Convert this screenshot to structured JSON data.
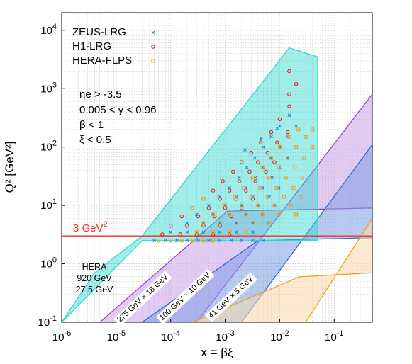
{
  "chart_data": {
    "type": "scatter",
    "xlabel": "x = βξ",
    "ylabel": "Q² [GeV²]",
    "x_scale": "log",
    "y_scale": "log",
    "xlim": [
      1e-06,
      0.5
    ],
    "ylim": [
      0.1,
      20000
    ],
    "x_ticks": [
      {
        "value": 1e-06,
        "base": "10",
        "exp": "-6"
      },
      {
        "value": 1e-05,
        "base": "10",
        "exp": "-5"
      },
      {
        "value": 0.0001,
        "base": "10",
        "exp": "-4"
      },
      {
        "value": 0.001,
        "base": "10",
        "exp": "-3"
      },
      {
        "value": 0.01,
        "base": "10",
        "exp": "-2"
      },
      {
        "value": 0.1,
        "base": "10",
        "exp": "-1"
      }
    ],
    "y_ticks": [
      {
        "value": 0.1,
        "base": "10",
        "exp": "-1"
      },
      {
        "value": 1,
        "base": "10",
        "exp": "0"
      },
      {
        "value": 10,
        "base": "10",
        "exp": "1"
      },
      {
        "value": 100,
        "base": "10",
        "exp": "2"
      },
      {
        "value": 1000,
        "base": "10",
        "exp": "3"
      },
      {
        "value": 10000,
        "base": "10",
        "exp": "4"
      }
    ],
    "grid": true,
    "legend_position": "top-left",
    "legend": [
      {
        "label": "ZEUS-LRG",
        "marker": "x",
        "color": "#2c7fd6"
      },
      {
        "label": "H1-LRG",
        "marker": "circle",
        "color": "#e02020"
      },
      {
        "label": "HERA-FLPS",
        "marker": "square",
        "color": "#f0a020"
      }
    ],
    "cuts": [
      "ηe > -3.5",
      "0.005 < y < 0.96",
      "β < 1",
      "ξ < 0.5"
    ],
    "reference_line": {
      "y": 3,
      "label_base": "3 GeV",
      "label_exp": "2",
      "color": "#e8322a"
    },
    "hera_label": [
      "HERA",
      "920 GeV",
      "27.5 GeV"
    ],
    "bands": [
      {
        "name": "275 GeV × 18 GeV",
        "color": "#9b45c9",
        "fill": "#c9a0ea",
        "lower_start": [
          5e-06,
          0.1
        ],
        "lower_end": [
          0.0011,
          8
        ],
        "lower_tail": [
          0.5,
          9
        ],
        "upper_start": [
          0.0003,
          0.1
        ],
        "upper_end": [
          0.5,
          800
        ]
      },
      {
        "name": "100 GeV × 10 GeV",
        "color": "#2b6fd0",
        "fill": "#7f9fe6",
        "lower_start": [
          3e-05,
          0.1
        ],
        "lower_end": [
          0.004,
          2.5
        ],
        "lower_tail": [
          0.5,
          2.8
        ],
        "upper_start": [
          0.002,
          0.1
        ],
        "upper_end": [
          0.5,
          110
        ]
      },
      {
        "name": "41 GeV × 5 GeV",
        "color": "#f0a020",
        "fill": "#f8d8a8",
        "lower_start": [
          0.00025,
          0.1
        ],
        "lower_end": [
          0.023,
          0.6
        ],
        "lower_tail": [
          0.5,
          0.7
        ],
        "upper_start": [
          0.03,
          0.1
        ],
        "upper_end": [
          0.5,
          6
        ]
      }
    ],
    "band_labels": [
      {
        "text": "275 GeV × 18 GeV",
        "x": 3e-05,
        "y": 0.26,
        "angle": -43
      },
      {
        "text": "100 GeV × 10 GeV",
        "x": 0.00018,
        "y": 0.28,
        "angle": -43
      },
      {
        "text": "41 GeV × 5 GeV",
        "x": 0.00125,
        "y": 0.27,
        "angle": -43
      }
    ],
    "hera_region": {
      "polygon": [
        [
          1e-06,
          0.1
        ],
        [
          3e-05,
          2.5
        ],
        [
          0.05,
          2.5
        ],
        [
          0.05,
          3500
        ],
        [
          0.015,
          5000
        ],
        [
          3e-05,
          3
        ],
        [
          4e-06,
          0.7
        ],
        [
          1e-06,
          0.1
        ]
      ],
      "color": "#2ed8d0"
    },
    "series": [
      {
        "name": "ZEUS-LRG",
        "marker": "x",
        "points": [
          [
            5e-05,
            2.5
          ],
          [
            8e-05,
            2.5
          ],
          [
            0.00013,
            2.5
          ],
          [
            0.0002,
            2.5
          ],
          [
            0.00032,
            2.5
          ],
          [
            0.0005,
            2.5
          ],
          [
            0.0008,
            2.5
          ],
          [
            0.0013,
            2.5
          ],
          [
            0.002,
            2.5
          ],
          [
            0.0032,
            2.5
          ],
          [
            0.005,
            2.5
          ],
          [
            0.0001,
            3.5
          ],
          [
            0.0002,
            3.5
          ],
          [
            0.0004,
            3.5
          ],
          [
            0.0008,
            3.5
          ],
          [
            0.0016,
            3.5
          ],
          [
            0.0032,
            3.5
          ],
          [
            0.0002,
            5
          ],
          [
            0.0004,
            5
          ],
          [
            0.0008,
            5
          ],
          [
            0.0016,
            5
          ],
          [
            0.0032,
            5
          ],
          [
            0.006,
            5
          ],
          [
            0.0003,
            7
          ],
          [
            0.0006,
            7
          ],
          [
            0.0012,
            7
          ],
          [
            0.0024,
            7
          ],
          [
            0.0048,
            7
          ],
          [
            0.0005,
            10
          ],
          [
            0.001,
            10
          ],
          [
            0.002,
            10
          ],
          [
            0.004,
            10
          ],
          [
            0.008,
            10
          ],
          [
            0.0008,
            14
          ],
          [
            0.0016,
            14
          ],
          [
            0.0032,
            14
          ],
          [
            0.0064,
            14
          ],
          [
            0.0012,
            20
          ],
          [
            0.0024,
            20
          ],
          [
            0.0048,
            20
          ],
          [
            0.0096,
            20
          ],
          [
            0.0018,
            30
          ],
          [
            0.0036,
            30
          ],
          [
            0.0072,
            30
          ],
          [
            0.0025,
            45
          ],
          [
            0.005,
            45
          ],
          [
            0.01,
            45
          ],
          [
            0.0035,
            65
          ],
          [
            0.007,
            65
          ],
          [
            0.014,
            65
          ],
          [
            0.005,
            100
          ],
          [
            0.01,
            100
          ],
          [
            0.007,
            150
          ],
          [
            0.014,
            150
          ],
          [
            0.01,
            230
          ],
          [
            0.02,
            230
          ],
          [
            0.015,
            350
          ],
          [
            0.0023,
            90
          ],
          [
            0.0046,
            140
          ],
          [
            0.009,
            210
          ]
        ]
      },
      {
        "name": "H1-LRG",
        "marker": "circle",
        "points": [
          [
            7e-05,
            3.2
          ],
          [
            0.00015,
            3.2
          ],
          [
            0.0003,
            3.2
          ],
          [
            0.0006,
            3.2
          ],
          [
            0.0012,
            3.2
          ],
          [
            0.0001,
            4.5
          ],
          [
            0.0002,
            4.5
          ],
          [
            0.0004,
            4.5
          ],
          [
            0.0008,
            4.5
          ],
          [
            0.00016,
            6.5
          ],
          [
            0.00032,
            6.5
          ],
          [
            0.00064,
            6.5
          ],
          [
            0.0013,
            6.5
          ],
          [
            0.00025,
            9
          ],
          [
            0.0005,
            9
          ],
          [
            0.001,
            9
          ],
          [
            0.002,
            9
          ],
          [
            0.0004,
            13
          ],
          [
            0.0008,
            13
          ],
          [
            0.0016,
            13
          ],
          [
            0.0032,
            13
          ],
          [
            0.0006,
            18
          ],
          [
            0.0012,
            18
          ],
          [
            0.0024,
            18
          ],
          [
            0.0009,
            26
          ],
          [
            0.0018,
            26
          ],
          [
            0.0036,
            26
          ],
          [
            0.0014,
            38
          ],
          [
            0.0028,
            38
          ],
          [
            0.0056,
            38
          ],
          [
            0.002,
            55
          ],
          [
            0.004,
            55
          ],
          [
            0.008,
            55
          ],
          [
            0.003,
            80
          ],
          [
            0.006,
            80
          ],
          [
            0.0045,
            120
          ],
          [
            0.009,
            120
          ],
          [
            0.007,
            180
          ],
          [
            0.014,
            180
          ],
          [
            0.01,
            300
          ],
          [
            0.015,
            500
          ],
          [
            0.015,
            800
          ],
          [
            0.02,
            1200
          ],
          [
            0.015,
            2000
          ]
        ]
      },
      {
        "name": "HERA-FLPS",
        "marker": "square",
        "points": [
          [
            6e-05,
            2.5
          ],
          [
            0.0001,
            2.5
          ],
          [
            0.00016,
            2.5
          ],
          [
            0.00026,
            2.5
          ],
          [
            0.0004,
            2.5
          ],
          [
            0.0006,
            2.5
          ],
          [
            0.0003,
            3.5
          ],
          [
            0.0006,
            3.5
          ],
          [
            0.0012,
            3.5
          ],
          [
            0.0024,
            3.5
          ],
          [
            0.0004,
            5
          ],
          [
            0.0008,
            5
          ],
          [
            0.0016,
            5
          ],
          [
            0.0032,
            5
          ],
          [
            0.0064,
            5
          ],
          [
            0.0006,
            7
          ],
          [
            0.0012,
            7
          ],
          [
            0.0024,
            7
          ],
          [
            0.0048,
            7
          ],
          [
            0.0096,
            7
          ],
          [
            0.02,
            7
          ],
          [
            0.001,
            10
          ],
          [
            0.002,
            10
          ],
          [
            0.004,
            10
          ],
          [
            0.008,
            10
          ],
          [
            0.016,
            10
          ],
          [
            0.0015,
            14
          ],
          [
            0.003,
            14
          ],
          [
            0.006,
            14
          ],
          [
            0.012,
            14
          ],
          [
            0.024,
            14
          ],
          [
            0.0022,
            20
          ],
          [
            0.0044,
            20
          ],
          [
            0.0088,
            20
          ],
          [
            0.018,
            20
          ],
          [
            0.0032,
            30
          ],
          [
            0.0064,
            30
          ],
          [
            0.013,
            30
          ],
          [
            0.026,
            30
          ],
          [
            0.0048,
            45
          ],
          [
            0.0096,
            45
          ],
          [
            0.019,
            45
          ],
          [
            0.007,
            65
          ],
          [
            0.014,
            65
          ],
          [
            0.028,
            65
          ],
          [
            0.01,
            100
          ],
          [
            0.02,
            100
          ],
          [
            0.04,
            100
          ],
          [
            0.015,
            150
          ],
          [
            0.03,
            150
          ],
          [
            0.022,
            200
          ],
          [
            0.04,
            200
          ],
          [
            0.00025,
            9
          ],
          [
            0.0004,
            13
          ]
        ]
      }
    ]
  }
}
